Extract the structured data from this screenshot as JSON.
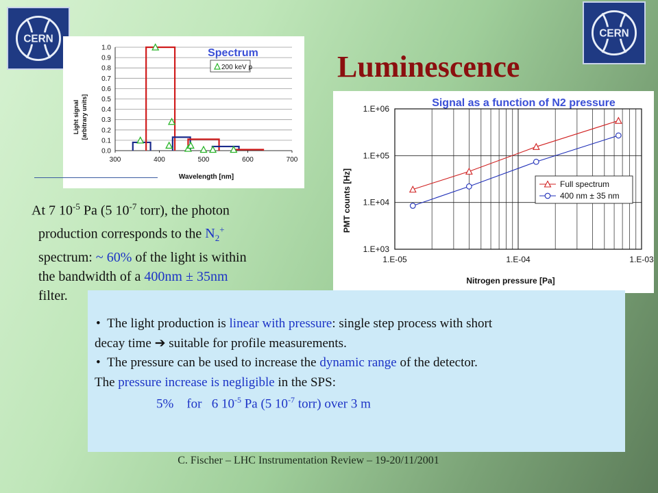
{
  "logos": {
    "text": "CERN"
  },
  "title": "Luminescence",
  "chart_data": [
    {
      "type": "bar",
      "title": "Spectrum",
      "legend": "200 keV p",
      "legend_position": "top-right",
      "xlabel": "Wavelength [nm]",
      "ylabel_line1": "Light signal",
      "ylabel_line2": "[arbitrary units]",
      "xlim": [
        300,
        700
      ],
      "ylim": [
        0,
        1.0
      ],
      "x_ticks": [
        "300",
        "400",
        "500",
        "600",
        "700"
      ],
      "y_ticks": [
        "0.0",
        "0.1",
        "0.2",
        "0.3",
        "0.4",
        "0.5",
        "0.6",
        "0.7",
        "0.8",
        "0.9",
        "1.0"
      ],
      "bars": [
        {
          "x0": 340,
          "x1": 380,
          "value": 0.08,
          "color": "#1a2a8c"
        },
        {
          "x0": 370,
          "x1": 435,
          "value": 1.0,
          "color": "#d01c1c"
        },
        {
          "x0": 430,
          "x1": 470,
          "value": 0.13,
          "color": "#1a2a8c"
        },
        {
          "x0": 465,
          "x1": 535,
          "value": 0.11,
          "color": "#d01c1c"
        },
        {
          "x0": 520,
          "x1": 580,
          "value": 0.04,
          "color": "#1a2a8c"
        },
        {
          "x0": 570,
          "x1": 635,
          "value": 0.01,
          "color": "#d01c1c"
        }
      ],
      "points": [
        {
          "x": 357,
          "y": 0.1
        },
        {
          "x": 391,
          "y": 1.0
        },
        {
          "x": 422,
          "y": 0.05
        },
        {
          "x": 428,
          "y": 0.28
        },
        {
          "x": 465,
          "y": 0.02
        },
        {
          "x": 471,
          "y": 0.05
        },
        {
          "x": 500,
          "y": 0.01
        },
        {
          "x": 521,
          "y": 0.01
        },
        {
          "x": 568,
          "y": 0.01
        }
      ],
      "point_color": "#2ab52a"
    },
    {
      "type": "line",
      "title": "Signal as a function of N2 pressure",
      "xlabel": "Nitrogen pressure [Pa]",
      "ylabel": "PMT counts [Hz]",
      "xscale": "log",
      "yscale": "log",
      "xlim": [
        1e-05,
        0.001
      ],
      "ylim": [
        1000.0,
        1000000.0
      ],
      "x_ticks": [
        "1.E-05",
        "1.E-04",
        "1.E-03"
      ],
      "y_ticks": [
        "1.E+03",
        "1.E+04",
        "1.E+05",
        "1.E+06"
      ],
      "grid": true,
      "legend_position": "right",
      "series": [
        {
          "name": "Full spectrum",
          "marker": "triangle",
          "color": "#d02020",
          "x": [
            1.4e-05,
            4e-05,
            0.00014,
            0.00065
          ],
          "y": [
            19000,
            46000,
            155000,
            560000
          ]
        },
        {
          "name": "400 nm ± 35 nm",
          "marker": "circle",
          "color": "#1f2fb8",
          "x": [
            1.4e-05,
            4e-05,
            0.00014,
            0.00065
          ],
          "y": [
            8500,
            22000,
            74000,
            270000
          ]
        }
      ]
    }
  ],
  "paragraph": {
    "line1_a": "At 7 10",
    "line1_exp1": "-5",
    "line1_b": " Pa (5 10",
    "line1_exp2": "-7",
    "line1_c": " torr), the photon",
    "line2_a": "production corresponds to the ",
    "line2_n": "N",
    "line2_sub": "2",
    "line2_sup": "+",
    "line3_a": "spectrum: ",
    "line3_b": "~ 60%",
    "line3_c": " of the light is within",
    "line4_a": "the bandwidth of a ",
    "line4_b": "400nm ± 35nm",
    "line5": "filter."
  },
  "bullets": {
    "bullet_char": "•",
    "b1_a": "The light production is ",
    "b1_b": "linear with pressure",
    "b1_c": ": single step process with  short",
    "b1_line2_a": "decay time ",
    "b1_arrow": "➔",
    "b1_line2_b": " suitable for profile measurements.",
    "b2_a": "The pressure can be used to increase the ",
    "b2_b": "dynamic range",
    "b2_c": " of the detector.",
    "l3_a": "The ",
    "l3_b": "pressure increase is negligible",
    "l3_c": " in the SPS:",
    "l4_a": "5%    for   6 10",
    "l4_exp1": "-5",
    "l4_b": " Pa (5 10",
    "l4_exp2": "-7",
    "l4_c": " torr) over 3 m"
  },
  "footer": "C. Fischer – LHC Instrumentation Review – 19-20/11/2001"
}
